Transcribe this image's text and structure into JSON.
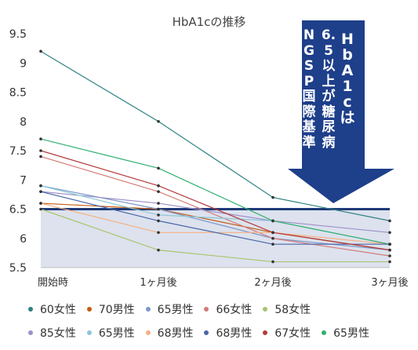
{
  "chart_data": {
    "type": "line",
    "title": "HbA1cの推移",
    "categories": [
      "開始時",
      "1ヶ月後",
      "2ヶ月後",
      "3ヶ月後"
    ],
    "ylim": [
      5.5,
      9.5
    ],
    "yticks": [
      "9.5",
      "9",
      "8.5",
      "8",
      "7.5",
      "7",
      "6.5",
      "6",
      "5.5"
    ],
    "grid": false,
    "legend_position": "bottom",
    "threshold": {
      "value": 6.5,
      "color": "#1f3a78",
      "fill": "#dde2ee"
    },
    "annotation": {
      "lines": [
        "HbA1c は",
        "6.5以上が糖尿病",
        "NGSP国際基準"
      ],
      "color": "#1e3f8a"
    },
    "series": [
      {
        "name": "60女性",
        "color": "#2e8080",
        "values": [
          9.2,
          8.0,
          6.7,
          6.3
        ]
      },
      {
        "name": "70男性",
        "color": "#c55a11",
        "values": [
          6.6,
          6.5,
          6.1,
          5.8
        ]
      },
      {
        "name": "65男性",
        "color": "#7b98c8",
        "values": [
          6.9,
          6.5,
          6.0,
          5.8
        ]
      },
      {
        "name": "66女性",
        "color": "#d47b78",
        "values": [
          7.4,
          6.8,
          6.0,
          5.7
        ]
      },
      {
        "name": "58女性",
        "color": "#a9c46d",
        "values": [
          6.5,
          5.8,
          5.6,
          5.6
        ]
      },
      {
        "name": "85女性",
        "color": "#9e90c8",
        "values": [
          6.8,
          6.6,
          6.3,
          6.1
        ]
      },
      {
        "name": "65男性",
        "color": "#8ac7d8",
        "values": [
          6.9,
          6.4,
          6.3,
          5.9
        ]
      },
      {
        "name": "68男性",
        "color": "#f4b183",
        "values": [
          6.6,
          6.1,
          6.1,
          5.9
        ]
      },
      {
        "name": "68男性",
        "color": "#4a66a8",
        "values": [
          6.8,
          6.3,
          5.9,
          5.9
        ]
      },
      {
        "name": "67女性",
        "color": "#b43a3a",
        "values": [
          7.5,
          6.9,
          6.1,
          5.8
        ]
      },
      {
        "name": "65男性",
        "color": "#2fb06e",
        "values": [
          7.7,
          7.2,
          6.3,
          5.9
        ]
      }
    ]
  }
}
